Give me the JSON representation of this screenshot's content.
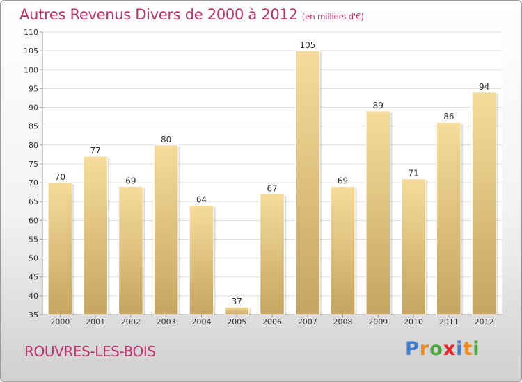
{
  "title": "Autres Revenus Divers de 2000 à 2012",
  "unit": "(en milliers d'€)",
  "town": "ROUVRES-LES-BOIS",
  "logo": {
    "letters": [
      "P",
      "r",
      "o",
      "x",
      "i",
      "t",
      "i"
    ],
    "colors": [
      "#3b7fd0",
      "#f08a1c",
      "#49a83c",
      "#e8232a",
      "#3b7fd0",
      "#f08a1c",
      "#49a83c"
    ]
  },
  "colors": {
    "title": "#c0306a",
    "bar_light": "#f6dc9a",
    "bar_dark": "#c5a560",
    "grid": "#dddddd"
  },
  "chart_data": {
    "type": "bar",
    "categories": [
      "2000",
      "2001",
      "2002",
      "2003",
      "2004",
      "2005",
      "2006",
      "2007",
      "2008",
      "2009",
      "2010",
      "2011",
      "2012"
    ],
    "values": [
      70,
      77,
      69,
      80,
      64,
      37,
      67,
      105,
      69,
      89,
      71,
      86,
      94
    ],
    "ylim": [
      35,
      110
    ],
    "yticks": [
      35,
      40,
      45,
      50,
      55,
      60,
      65,
      70,
      75,
      80,
      85,
      90,
      95,
      100,
      105,
      110
    ],
    "grid": true,
    "xlabel": "",
    "ylabel": ""
  }
}
